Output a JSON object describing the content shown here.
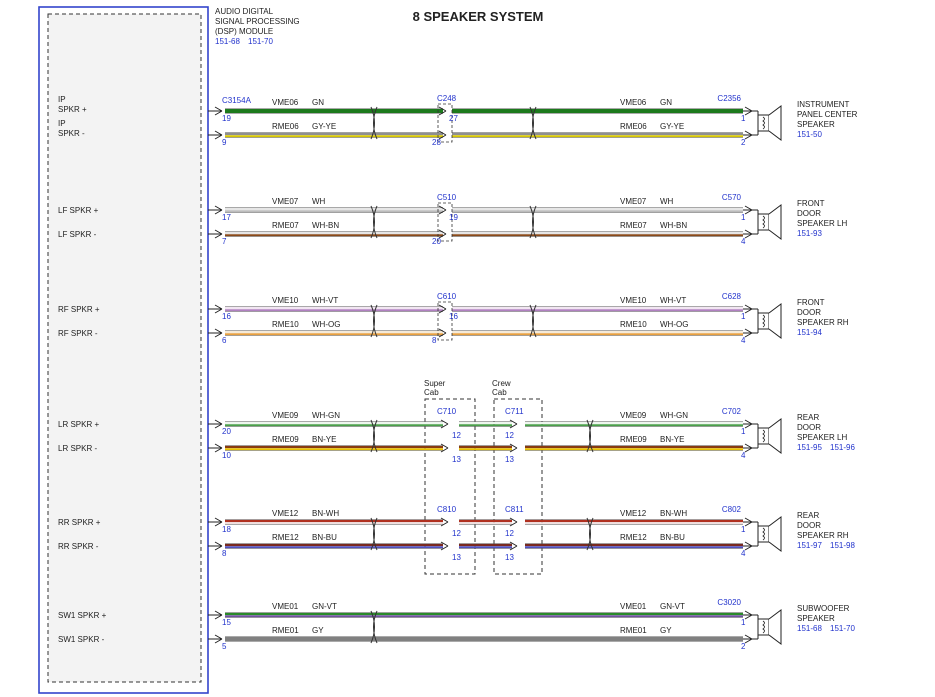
{
  "title": "8 SPEAKER SYSTEM",
  "module": {
    "lines": [
      "AUDIO DIGITAL",
      "SIGNAL PROCESSING",
      "(DSP) MODULE"
    ],
    "refs": [
      "151-68",
      "151-70"
    ],
    "connector": "C3154A"
  },
  "colors": {
    "border": "#3344cc",
    "ref_text": "#2233cc",
    "module_fill": "#f3f3f3",
    "text": "#222222"
  },
  "channels": [
    {
      "id": "ip",
      "plus_label": [
        "IP",
        "SPKR +"
      ],
      "minus_label": [
        "IP",
        "SPKR -"
      ],
      "plus_pin": "19",
      "minus_pin": "9",
      "plus_circuit": "VME06",
      "plus_color_name": "GN",
      "minus_circuit": "RME06",
      "minus_color_name": "GY-YE",
      "plus_wire": [
        "#1d7a1d"
      ],
      "minus_wire": [
        "#8f8f8f",
        "#d8c800"
      ],
      "mid_connector": "C248",
      "mid_plus_pin": "27",
      "mid_minus_pin": "28",
      "speaker_connector": "C2356",
      "speaker_plus_pin": "1",
      "speaker_minus_pin": "2",
      "speaker_name": [
        "INSTRUMENT",
        "PANEL CENTER",
        "SPEAKER"
      ],
      "speaker_refs": [
        "151-50"
      ]
    },
    {
      "id": "lf",
      "plus_label": [
        "LF SPKR +"
      ],
      "minus_label": [
        "LF SPKR -"
      ],
      "plus_pin": "17",
      "minus_pin": "7",
      "plus_circuit": "VME07",
      "plus_color_name": "WH",
      "minus_circuit": "RME07",
      "minus_color_name": "WH-BN",
      "plus_wire": [
        "#e6e6e6",
        "#bcbcbc"
      ],
      "minus_wire": [
        "#e6e6e6",
        "#8a4a1a"
      ],
      "mid_connector": "C510",
      "mid_plus_pin": "19",
      "mid_minus_pin": "20",
      "speaker_connector": "C570",
      "speaker_plus_pin": "1",
      "speaker_minus_pin": "4",
      "speaker_name": [
        "FRONT",
        "DOOR",
        "SPEAKER LH"
      ],
      "speaker_refs": [
        "151-93"
      ]
    },
    {
      "id": "rf",
      "plus_label": [
        "RF SPKR +"
      ],
      "minus_label": [
        "RF SPKR -"
      ],
      "plus_pin": "16",
      "minus_pin": "6",
      "plus_circuit": "VME10",
      "plus_color_name": "WH-VT",
      "minus_circuit": "RME10",
      "minus_color_name": "WH-OG",
      "plus_wire": [
        "#f2e6f2",
        "#b080c0"
      ],
      "minus_wire": [
        "#f5ead8",
        "#e8a040"
      ],
      "mid_connector": "C610",
      "mid_plus_pin": "16",
      "mid_minus_pin": "8",
      "speaker_connector": "C628",
      "speaker_plus_pin": "1",
      "speaker_minus_pin": "4",
      "speaker_name": [
        "FRONT",
        "DOOR",
        "SPEAKER RH"
      ],
      "speaker_refs": [
        "151-94"
      ]
    },
    {
      "id": "lr",
      "plus_label": [
        "LR SPKR +"
      ],
      "minus_label": [
        "LR SPKR -"
      ],
      "plus_pin": "20",
      "minus_pin": "10",
      "plus_circuit": "VME09",
      "plus_color_name": "WH-GN",
      "minus_circuit": "RME09",
      "minus_color_name": "BN-YE",
      "plus_wire": [
        "#eef6ee",
        "#4aa04a"
      ],
      "minus_wire": [
        "#8a3a10",
        "#e8c000"
      ],
      "cab_connectors": [
        "C710",
        "C711"
      ],
      "cab_plus_pin": "12",
      "cab_minus_pin": "13",
      "speaker_connector": "C702",
      "speaker_plus_pin": "1",
      "speaker_minus_pin": "4",
      "speaker_name": [
        "REAR",
        "DOOR",
        "SPEAKER LH"
      ],
      "speaker_refs": [
        "151-95",
        "151-96"
      ]
    },
    {
      "id": "rr",
      "plus_label": [
        "RR SPKR +"
      ],
      "minus_label": [
        "RR SPKR -"
      ],
      "plus_pin": "18",
      "minus_pin": "8",
      "plus_circuit": "VME12",
      "plus_color_name": "BN-WH",
      "minus_circuit": "RME12",
      "minus_color_name": "BN-BU",
      "plus_wire": [
        "#b03020",
        "#f0e0e0"
      ],
      "minus_wire": [
        "#7a2a20",
        "#5050c0"
      ],
      "cab_connectors": [
        "C810",
        "C811"
      ],
      "cab_plus_pin": "12",
      "cab_minus_pin": "13",
      "speaker_connector": "C802",
      "speaker_plus_pin": "1",
      "speaker_minus_pin": "4",
      "speaker_name": [
        "REAR",
        "DOOR",
        "SPEAKER RH"
      ],
      "speaker_refs": [
        "151-97",
        "151-98"
      ]
    },
    {
      "id": "sw1",
      "plus_label": [
        "SW1 SPKR +"
      ],
      "minus_label": [
        "SW1 SPKR -"
      ],
      "plus_pin": "15",
      "minus_pin": "5",
      "plus_circuit": "VME01",
      "plus_color_name": "GN-VT",
      "minus_circuit": "RME01",
      "minus_color_name": "GY",
      "plus_wire": [
        "#2a8a2a",
        "#7050a0"
      ],
      "minus_wire": [
        "#808080"
      ],
      "speaker_connector": "C3020",
      "speaker_plus_pin": "1",
      "speaker_minus_pin": "2",
      "speaker_name": [
        "SUBWOOFER",
        "SPEAKER"
      ],
      "speaker_refs": [
        "151-68",
        "151-70"
      ]
    }
  ],
  "cab_labels": {
    "super": [
      "Super",
      "Cab"
    ],
    "crew": [
      "Crew",
      "Cab"
    ]
  }
}
